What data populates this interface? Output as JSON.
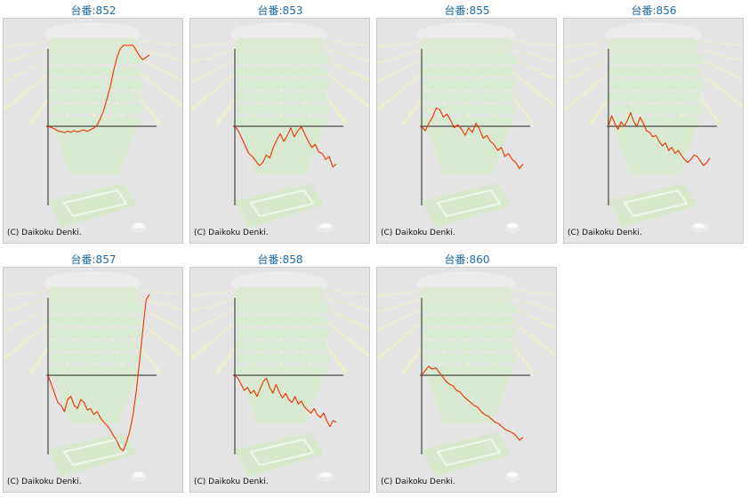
{
  "copyright": "(C) Daikoku Denki.",
  "colors": {
    "title": "#1a6aa8",
    "line": "#ee3300",
    "axis": "#222222",
    "bg": "#e4e4e4"
  },
  "machines": [
    {
      "title": "台番:852",
      "chart_data": {
        "type": "line",
        "y": [
          0,
          -40,
          -90,
          -150,
          -180,
          -210,
          -160,
          -200,
          -140,
          -190,
          -150,
          -120,
          -170,
          -110,
          -60,
          40,
          250,
          520,
          900,
          1300,
          1800,
          2250,
          2550,
          2750,
          2820,
          2860,
          2700,
          2500,
          2320,
          2200,
          2280,
          2360
        ]
      }
    },
    {
      "title": "台番:853",
      "chart_data": {
        "type": "line",
        "y": [
          0,
          -150,
          -400,
          -650,
          -900,
          -1000,
          -1150,
          -1300,
          -1200,
          -950,
          -1050,
          -700,
          -450,
          -250,
          -500,
          -300,
          -50,
          -350,
          -150,
          -20,
          -250,
          -500,
          -700,
          -600,
          -850,
          -900,
          -1100,
          -1000,
          -1350,
          -1250
        ]
      }
    },
    {
      "title": "台番:855",
      "chart_data": {
        "type": "line",
        "y": [
          0,
          -150,
          100,
          300,
          600,
          550,
          300,
          400,
          200,
          -50,
          50,
          -100,
          -300,
          -50,
          -200,
          100,
          -100,
          -400,
          -300,
          -500,
          -600,
          -800,
          -700,
          -1000,
          -900,
          -1100,
          -1200,
          -1400,
          -1250
        ]
      }
    },
    {
      "title": "台番:856",
      "chart_data": {
        "type": "line",
        "y": [
          0,
          350,
          100,
          -100,
          150,
          0,
          200,
          450,
          150,
          0,
          300,
          100,
          -150,
          -200,
          -350,
          -300,
          -500,
          -650,
          -550,
          -800,
          -700,
          -900,
          -800,
          -950,
          -1100,
          -1200,
          -1100,
          -950,
          -1000,
          -1150,
          -1300,
          -1200,
          -1050
        ]
      }
    },
    {
      "title": "台番:857",
      "chart_data": {
        "type": "line",
        "y": [
          0,
          -300,
          -600,
          -900,
          -1000,
          -1200,
          -800,
          -700,
          -1000,
          -1100,
          -800,
          -900,
          -1150,
          -1100,
          -1300,
          -1200,
          -1400,
          -1550,
          -1650,
          -1800,
          -2000,
          -2150,
          -2400,
          -2500,
          -2200,
          -1850,
          -1300,
          -500,
          500,
          1500,
          2500,
          3000
        ]
      }
    },
    {
      "title": "台番:858",
      "chart_data": {
        "type": "line",
        "y": [
          0,
          -100,
          -300,
          -500,
          -400,
          -600,
          -500,
          -700,
          -450,
          -200,
          -100,
          -400,
          -600,
          -300,
          -550,
          -750,
          -600,
          -800,
          -900,
          -700,
          -950,
          -850,
          -1050,
          -1150,
          -1250,
          -1100,
          -1300,
          -1400,
          -1250,
          -1500,
          -1700,
          -1500,
          -1550
        ]
      }
    },
    {
      "title": "台番:860",
      "chart_data": {
        "type": "line",
        "y": [
          0,
          150,
          300,
          200,
          250,
          100,
          -50,
          -200,
          -300,
          -350,
          -500,
          -550,
          -700,
          -800,
          -900,
          -1000,
          -1050,
          -1200,
          -1300,
          -1350,
          -1450,
          -1550,
          -1600,
          -1700,
          -1800,
          -1850,
          -1900,
          -2000,
          -2150,
          -2050
        ]
      }
    }
  ]
}
